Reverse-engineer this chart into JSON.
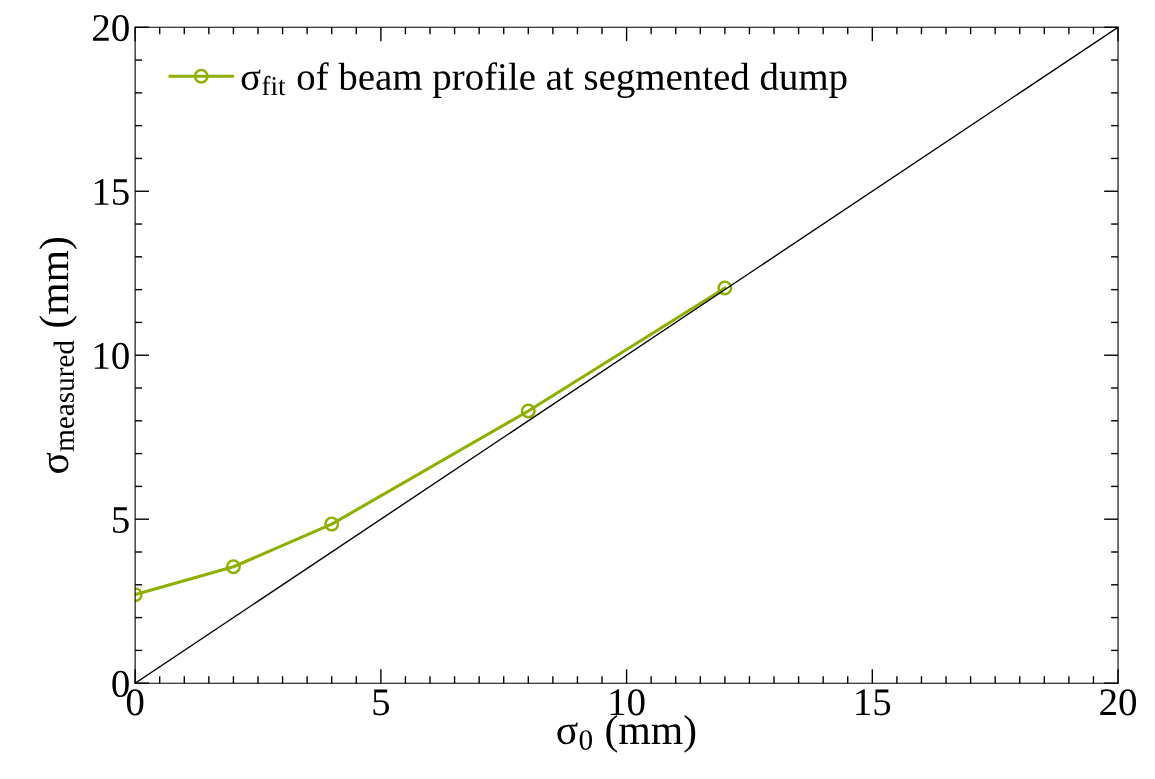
{
  "chart_data": {
    "type": "line",
    "xlabel": "σ$_{0}$ (mm)",
    "ylabel": "σ$_{measured}$ (mm)",
    "xlim": [
      0,
      20
    ],
    "ylim": [
      0,
      20
    ],
    "xticks": [
      0,
      5,
      10,
      15,
      20
    ],
    "yticks": [
      0,
      5,
      10,
      15,
      20
    ],
    "grid": false,
    "legend": "top left",
    "series": [
      {
        "name": "σ$_{fit}$ of beam profile at segmented dump",
        "color": "#8db000",
        "marker": "circle",
        "line_style": "solid",
        "x": [
          0,
          2,
          4,
          8,
          12
        ],
        "values": [
          2.7,
          3.55,
          4.85,
          8.3,
          12.05
        ]
      },
      {
        "color": "#000000",
        "marker": "none",
        "line_style": "solid",
        "x": [
          0,
          20
        ],
        "values": [
          0,
          20
        ]
      }
    ]
  }
}
